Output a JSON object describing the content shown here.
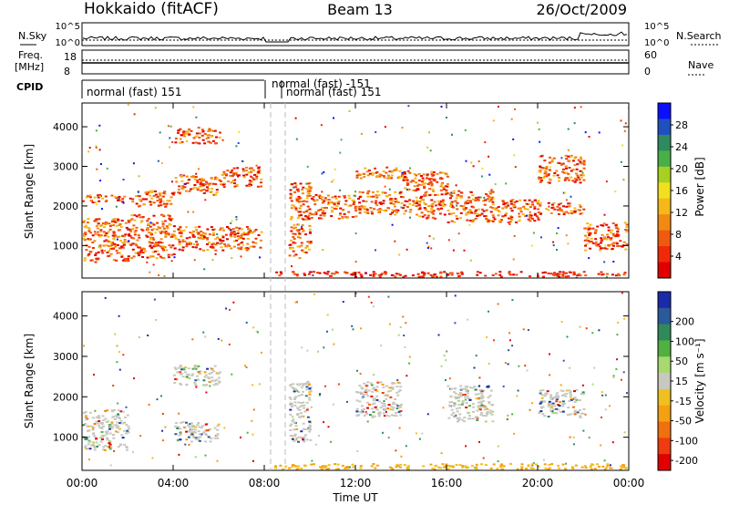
{
  "header": {
    "title_left": "Hokkaido (fitACF)",
    "title_center": "Beam 13",
    "title_right": "26/Oct/2009"
  },
  "param_panel": {
    "nsky_label": "N.Sky",
    "nsky_ticks": [
      "10^5",
      "10^0"
    ],
    "freq_label_1": "Freq.",
    "freq_label_2": "[MHz]",
    "freq_ticks": [
      "18",
      "8"
    ],
    "right_ticks_top": [
      "10^5",
      "10^0"
    ],
    "right_ticks_bottom": [
      "60",
      "0"
    ],
    "nsearch_label": "N.Search",
    "nave_label": "Nave",
    "cpid_label": "CPID",
    "cpid_segments": [
      "normal (fast) 151",
      "normal (fast) -151",
      "normal (fast) 151"
    ]
  },
  "chart_data": [
    {
      "type": "heatmap",
      "title": "",
      "xlabel": "",
      "ylabel": "Slant Range [km]",
      "ylim": [
        180,
        4600
      ],
      "yticks": [
        "1000",
        "2000",
        "3000",
        "4000"
      ],
      "xlim": [
        0,
        24
      ],
      "colorbar": {
        "label": "Power [dB]",
        "ticks": [
          "4",
          "8",
          "12",
          "16",
          "20",
          "24",
          "28"
        ],
        "colors": [
          "#0a10ff",
          "#2050c0",
          "#2e8a60",
          "#48b048",
          "#a8d020",
          "#f0e020",
          "#f5b818",
          "#f08a10",
          "#f05a10",
          "#f02a08",
          "#e00000"
        ]
      },
      "bands": [
        {
          "t": 0,
          "ranges": [
            [
              600,
              1700
            ],
            [
              2100,
              2300
            ]
          ]
        },
        {
          "t": 2,
          "ranges": [
            [
              700,
              1800
            ],
            [
              2000,
              2400
            ]
          ]
        },
        {
          "t": 4,
          "ranges": [
            [
              900,
              1500
            ],
            [
              2300,
              2800
            ],
            [
              3600,
              4000
            ]
          ]
        },
        {
          "t": 6,
          "ranges": [
            [
              900,
              1500
            ],
            [
              2500,
              3000
            ]
          ]
        },
        {
          "t": 8,
          "ranges": [
            [
              700,
              2600
            ]
          ]
        },
        {
          "t": 10,
          "ranges": [
            [
              1700,
              2300
            ]
          ]
        },
        {
          "t": 12,
          "ranges": [
            [
              1800,
              2400
            ],
            [
              2700,
              3000
            ]
          ]
        },
        {
          "t": 14,
          "ranges": [
            [
              1700,
              2900
            ]
          ]
        },
        {
          "t": 16,
          "ranges": [
            [
              1600,
              2400
            ]
          ]
        },
        {
          "t": 18,
          "ranges": [
            [
              1600,
              2200
            ]
          ]
        },
        {
          "t": 20,
          "ranges": [
            [
              1800,
              2100
            ],
            [
              2600,
              3300
            ]
          ]
        },
        {
          "t": 22,
          "ranges": [
            [
              900,
              1600
            ]
          ]
        },
        {
          "t": 24,
          "ranges": [
            [
              900,
              1500
            ]
          ]
        }
      ]
    },
    {
      "type": "heatmap",
      "title": "",
      "xlabel": "Time UT",
      "ylabel": "Slant Range [km]",
      "ylim": [
        180,
        4600
      ],
      "yticks": [
        "1000",
        "2000",
        "3000",
        "4000"
      ],
      "xlim": [
        0,
        24
      ],
      "xticks": [
        "00:00",
        "04:00",
        "08:00",
        "12:00",
        "16:00",
        "20:00",
        "00:00"
      ],
      "colorbar": {
        "label": "Velocity [m s⁻¹]",
        "ticks": [
          "200",
          "100",
          "50",
          "15",
          "-15",
          "-50",
          "-100",
          "-200"
        ],
        "colors": [
          "#1a2aa8",
          "#2a5a9a",
          "#2f8a5a",
          "#50b040",
          "#a8d870",
          "#c8c8c0",
          "#f0c020",
          "#f5a010",
          "#f07010",
          "#f03a10",
          "#e00000"
        ]
      },
      "bands": [
        {
          "t": 0,
          "ranges": [
            [
              700,
              1700
            ]
          ]
        },
        {
          "t": 4,
          "ranges": [
            [
              900,
              1400
            ],
            [
              2300,
              2800
            ]
          ]
        },
        {
          "t": 8,
          "ranges": [
            [
              900,
              2400
            ]
          ]
        },
        {
          "t": 12,
          "ranges": [
            [
              1500,
              2400
            ]
          ]
        },
        {
          "t": 16,
          "ranges": [
            [
              1400,
              2300
            ]
          ]
        },
        {
          "t": 20,
          "ranges": [
            [
              1500,
              2200
            ]
          ]
        },
        {
          "t": 24,
          "ranges": [
            [
              900,
              1500
            ]
          ]
        }
      ]
    }
  ]
}
